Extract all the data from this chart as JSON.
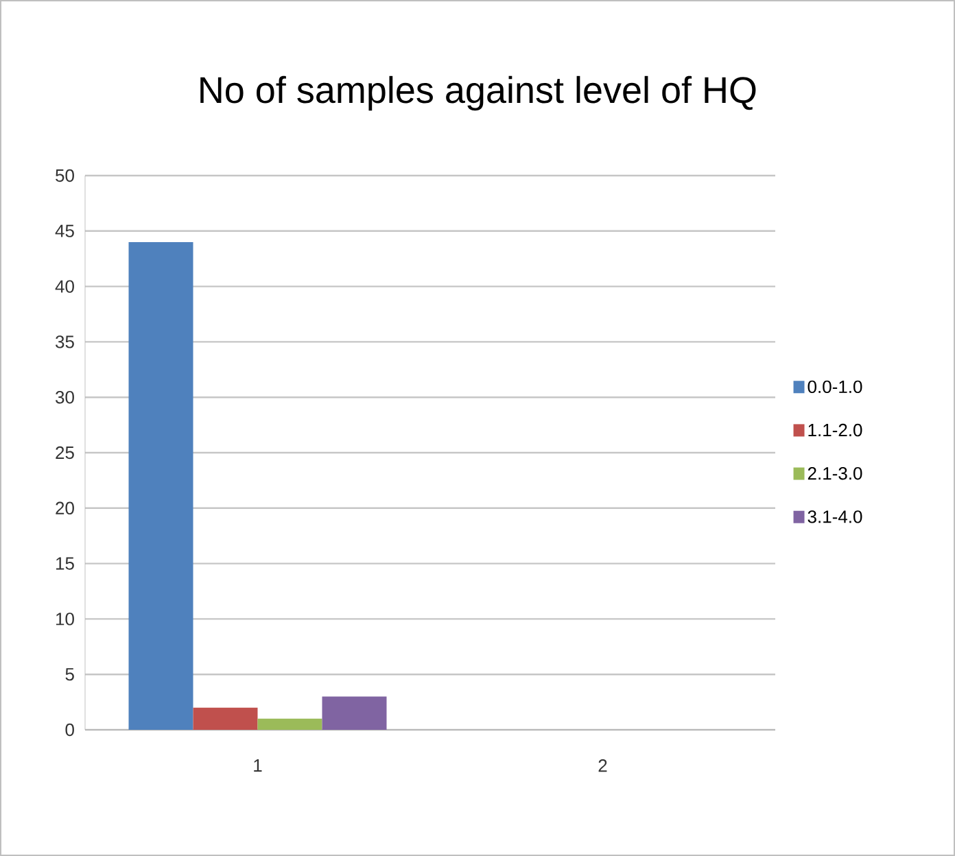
{
  "chart_data": {
    "type": "bar",
    "title": "No of samples against level of HQ",
    "categories": [
      "1",
      "2"
    ],
    "series": [
      {
        "name": "0.0-1.0",
        "color": "#4f81bd",
        "values": [
          44,
          0
        ]
      },
      {
        "name": "1.1-2.0",
        "color": "#c0504d",
        "values": [
          2,
          0
        ]
      },
      {
        "name": "2.1-3.0",
        "color": "#9bbb59",
        "values": [
          1,
          0
        ]
      },
      {
        "name": "3.1-4.0",
        "color": "#8064a2",
        "values": [
          3,
          0
        ]
      }
    ],
    "ylim": [
      0,
      50
    ],
    "yticks": [
      0,
      5,
      10,
      15,
      20,
      25,
      30,
      35,
      40,
      45,
      50
    ],
    "grid": "y",
    "legend": "right"
  }
}
